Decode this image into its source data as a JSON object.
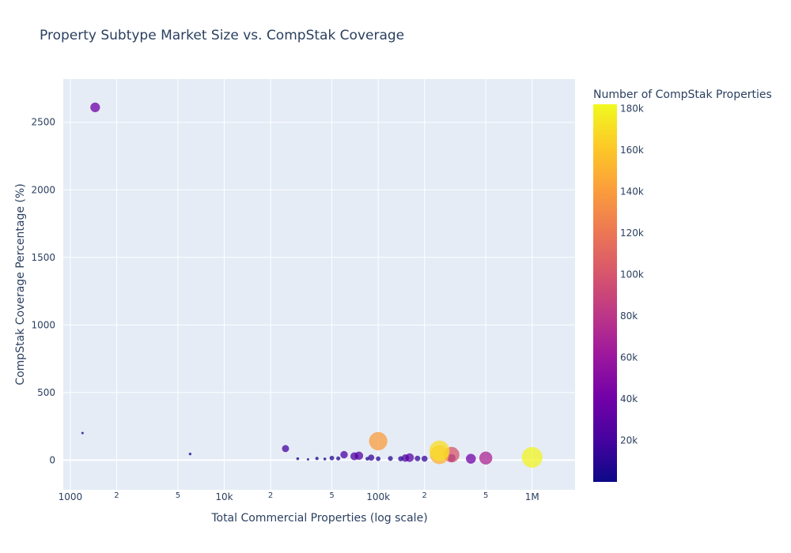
{
  "chart_data": {
    "type": "scatter",
    "title": "Property Subtype Market Size vs. CompStak Coverage",
    "xlabel": "Total Commercial Properties (log scale)",
    "ylabel": "CompStak Coverage Percentage (%)",
    "x_scale": "log",
    "xlim": [
      900,
      1900000
    ],
    "ylim": [
      -220,
      2820
    ],
    "x_ticks_major": [
      {
        "value": 1000,
        "label": "1000"
      },
      {
        "value": 10000,
        "label": "10k"
      },
      {
        "value": 100000,
        "label": "100k"
      },
      {
        "value": 1000000,
        "label": "1M"
      }
    ],
    "x_ticks_minor": [
      {
        "value": 2000,
        "label": "2"
      },
      {
        "value": 5000,
        "label": "5"
      },
      {
        "value": 20000,
        "label": "2"
      },
      {
        "value": 50000,
        "label": "5"
      },
      {
        "value": 200000,
        "label": "2"
      },
      {
        "value": 500000,
        "label": "5"
      }
    ],
    "y_ticks": [
      {
        "value": 0,
        "label": "0"
      },
      {
        "value": 500,
        "label": "500"
      },
      {
        "value": 1000,
        "label": "1000"
      },
      {
        "value": 1500,
        "label": "1500"
      },
      {
        "value": 2000,
        "label": "2000"
      },
      {
        "value": 2500,
        "label": "2500"
      }
    ],
    "grid": true,
    "colorbar": {
      "title": "Number of CompStak Properties",
      "min": 0,
      "max": 182000,
      "ticks": [
        {
          "value": 20000,
          "label": "20k"
        },
        {
          "value": 40000,
          "label": "40k"
        },
        {
          "value": 60000,
          "label": "60k"
        },
        {
          "value": 80000,
          "label": "80k"
        },
        {
          "value": 100000,
          "label": "100k"
        },
        {
          "value": 120000,
          "label": "120k"
        },
        {
          "value": 140000,
          "label": "140k"
        },
        {
          "value": 160000,
          "label": "160k"
        },
        {
          "value": 180000,
          "label": "180k"
        }
      ],
      "colorscale": [
        "#0d0887",
        "#46039f",
        "#7201a8",
        "#9c179e",
        "#bd3786",
        "#d8576b",
        "#ed7953",
        "#fb9f3a",
        "#fdca26",
        "#f0f921"
      ]
    },
    "points": [
      {
        "x": 1200,
        "y": 200,
        "c": 2000
      },
      {
        "x": 1450,
        "y": 2610,
        "c": 38000
      },
      {
        "x": 6000,
        "y": 45,
        "c": 2500
      },
      {
        "x": 25000,
        "y": 85,
        "c": 20000
      },
      {
        "x": 30000,
        "y": 10,
        "c": 3000
      },
      {
        "x": 35000,
        "y": 5,
        "c": 2000
      },
      {
        "x": 40000,
        "y": 12,
        "c": 4000
      },
      {
        "x": 45000,
        "y": 8,
        "c": 3000
      },
      {
        "x": 50000,
        "y": 15,
        "c": 8000
      },
      {
        "x": 55000,
        "y": 12,
        "c": 6000
      },
      {
        "x": 60000,
        "y": 40,
        "c": 22000
      },
      {
        "x": 70000,
        "y": 28,
        "c": 25000
      },
      {
        "x": 75000,
        "y": 32,
        "c": 28000
      },
      {
        "x": 85000,
        "y": 10,
        "c": 5000
      },
      {
        "x": 90000,
        "y": 18,
        "c": 15000
      },
      {
        "x": 100000,
        "y": 140,
        "c": 140000
      },
      {
        "x": 100000,
        "y": 10,
        "c": 8000
      },
      {
        "x": 120000,
        "y": 12,
        "c": 9000
      },
      {
        "x": 140000,
        "y": 10,
        "c": 10000
      },
      {
        "x": 150000,
        "y": 15,
        "c": 22000
      },
      {
        "x": 160000,
        "y": 18,
        "c": 30000
      },
      {
        "x": 180000,
        "y": 12,
        "c": 12000
      },
      {
        "x": 200000,
        "y": 10,
        "c": 14000
      },
      {
        "x": 250000,
        "y": 70,
        "c": 170000
      },
      {
        "x": 250000,
        "y": 40,
        "c": 150000
      },
      {
        "x": 300000,
        "y": 40,
        "c": 100000
      },
      {
        "x": 300000,
        "y": 15,
        "c": 25000
      },
      {
        "x": 400000,
        "y": 10,
        "c": 40000
      },
      {
        "x": 500000,
        "y": 15,
        "c": 70000
      },
      {
        "x": 1000000,
        "y": 20,
        "c": 180000
      }
    ]
  }
}
